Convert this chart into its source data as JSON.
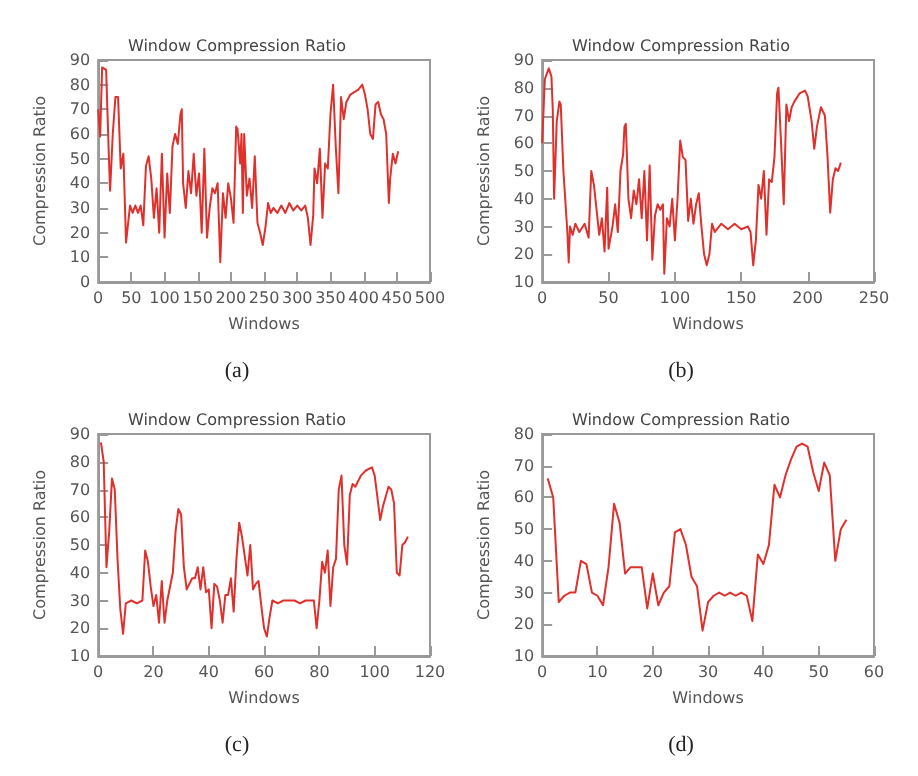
{
  "chart_data": [
    {
      "type": "line",
      "title": "Window Compression Ratio",
      "xlabel": "Windows",
      "ylabel": "Compression Ratio",
      "annotations": [
        "(a)"
      ],
      "marker": "none",
      "line_style": "solid",
      "grid": false,
      "color": "#e0302c",
      "xlim": [
        0,
        500
      ],
      "ylim": [
        0,
        90
      ],
      "xticks": [
        0,
        50,
        100,
        150,
        200,
        250,
        300,
        350,
        400,
        450,
        500
      ],
      "yticks": [
        0,
        10,
        20,
        30,
        40,
        50,
        60,
        70,
        80,
        90
      ],
      "x": [
        0,
        3,
        6,
        12,
        16,
        18,
        22,
        26,
        30,
        34,
        38,
        42,
        44,
        48,
        52,
        56,
        60,
        64,
        68,
        72,
        76,
        80,
        84,
        88,
        92,
        96,
        100,
        104,
        108,
        112,
        116,
        120,
        124,
        126,
        128,
        132,
        136,
        140,
        144,
        148,
        152,
        156,
        160,
        164,
        168,
        172,
        176,
        180,
        184,
        188,
        192,
        196,
        200,
        204,
        208,
        210,
        214,
        216,
        218,
        220,
        224,
        228,
        232,
        236,
        240,
        244,
        248,
        252,
        256,
        260,
        264,
        270,
        276,
        282,
        288,
        294,
        300,
        306,
        312,
        316,
        320,
        324,
        326,
        330,
        334,
        338,
        342,
        346,
        350,
        354,
        358,
        362,
        366,
        370,
        374,
        380,
        386,
        392,
        398,
        402,
        406,
        410,
        414,
        418,
        422,
        426,
        430,
        434,
        438,
        440,
        444,
        448,
        452
      ],
      "values": [
        70,
        59,
        87,
        86,
        52,
        37,
        60,
        75,
        75,
        46,
        52,
        16,
        16,
        31,
        28,
        31,
        28,
        31,
        23,
        47,
        51,
        42,
        26,
        38,
        20,
        52,
        18,
        44,
        28,
        55,
        60,
        56,
        68,
        70,
        40,
        30,
        45,
        36,
        52,
        35,
        44,
        20,
        54,
        18,
        30,
        38,
        36,
        40,
        8,
        36,
        26,
        40,
        34,
        24,
        63,
        62,
        48,
        60,
        28,
        60,
        35,
        42,
        30,
        51,
        24,
        20,
        15,
        22,
        32,
        28,
        30,
        28,
        31,
        28,
        32,
        29,
        31,
        29,
        31,
        26,
        15,
        27,
        46,
        40,
        54,
        26,
        48,
        46,
        68,
        80,
        55,
        36,
        75,
        66,
        73,
        76,
        77,
        78,
        80,
        76,
        70,
        60,
        58,
        72,
        73,
        68,
        66,
        60,
        32,
        42,
        52,
        48,
        53
      ]
    },
    {
      "type": "line",
      "title": "Window Compression Ratio",
      "xlabel": "Windows",
      "ylabel": "Compression Ratio",
      "annotations": [
        "(b)"
      ],
      "marker": "none",
      "line_style": "solid",
      "grid": false,
      "color": "#e0302c",
      "xlim": [
        0,
        250
      ],
      "ylim": [
        10,
        90
      ],
      "xticks": [
        0,
        50,
        100,
        150,
        200,
        250
      ],
      "yticks": [
        10,
        20,
        30,
        40,
        50,
        60,
        70,
        80,
        90
      ],
      "x": [
        0,
        2,
        5,
        7,
        8,
        9,
        11,
        13,
        14,
        16,
        19,
        20,
        21,
        23,
        25,
        28,
        32,
        35,
        37,
        39,
        41,
        43,
        45,
        47,
        49,
        50,
        53,
        55,
        57,
        59,
        61,
        62,
        63,
        65,
        67,
        69,
        71,
        73,
        75,
        77,
        79,
        81,
        83,
        85,
        87,
        89,
        91,
        92,
        94,
        96,
        98,
        100,
        102,
        104,
        106,
        108,
        110,
        112,
        114,
        116,
        118,
        120,
        122,
        124,
        126,
        128,
        130,
        135,
        140,
        145,
        150,
        155,
        157,
        159,
        161,
        163,
        165,
        167,
        169,
        171,
        173,
        175,
        177,
        178,
        180,
        182,
        184,
        186,
        188,
        190,
        194,
        198,
        200,
        203,
        205,
        207,
        210,
        213,
        215,
        217,
        219,
        221,
        223,
        225
      ],
      "values": [
        60,
        83,
        87,
        84,
        72,
        40,
        68,
        75,
        74,
        50,
        28,
        17,
        30,
        27,
        31,
        28,
        31,
        26,
        50,
        45,
        36,
        27,
        33,
        21,
        44,
        22,
        30,
        38,
        28,
        50,
        56,
        66,
        67,
        40,
        33,
        43,
        38,
        47,
        33,
        50,
        25,
        52,
        18,
        34,
        38,
        36,
        38,
        13,
        33,
        30,
        40,
        25,
        40,
        61,
        55,
        54,
        32,
        40,
        31,
        38,
        42,
        30,
        20,
        16,
        20,
        31,
        28,
        31,
        29,
        31,
        29,
        30,
        28,
        16,
        25,
        45,
        40,
        50,
        27,
        47,
        46,
        55,
        78,
        80,
        60,
        38,
        74,
        68,
        73,
        75,
        78,
        79,
        77,
        68,
        58,
        66,
        73,
        70,
        55,
        35,
        47,
        51,
        50,
        53
      ]
    },
    {
      "type": "line",
      "title": "Window Compression Ratio",
      "xlabel": "Windows",
      "ylabel": "Compression Ratio",
      "annotations": [
        "(c)"
      ],
      "marker": "none",
      "line_style": "solid",
      "grid": false,
      "color": "#e0302c",
      "xlim": [
        0,
        120
      ],
      "ylim": [
        10,
        90
      ],
      "xticks": [
        0,
        20,
        40,
        60,
        80,
        100,
        120
      ],
      "yticks": [
        10,
        20,
        30,
        40,
        50,
        60,
        70,
        80,
        90
      ],
      "x": [
        1,
        2,
        3,
        4,
        5,
        6,
        7,
        8,
        9,
        10,
        12,
        14,
        16,
        17,
        18,
        19,
        20,
        21,
        22,
        23,
        24,
        25,
        27,
        28,
        29,
        30,
        31,
        32,
        34,
        35,
        36,
        37,
        38,
        39,
        40,
        41,
        42,
        43,
        44,
        45,
        46,
        47,
        48,
        49,
        50,
        51,
        52,
        53,
        54,
        55,
        56,
        57,
        58,
        59,
        60,
        61,
        62,
        63,
        65,
        67,
        69,
        71,
        73,
        75,
        77,
        78,
        79,
        80,
        81,
        82,
        83,
        84,
        85,
        86,
        87,
        88,
        89,
        90,
        91,
        92,
        93,
        95,
        97,
        99,
        100,
        102,
        103,
        105,
        106,
        107,
        108,
        109,
        110,
        111,
        112
      ],
      "values": [
        87,
        80,
        42,
        55,
        74,
        70,
        45,
        27,
        18,
        29,
        30,
        29,
        30,
        48,
        44,
        35,
        28,
        32,
        22,
        37,
        22,
        30,
        40,
        55,
        63,
        61,
        42,
        34,
        38,
        38,
        42,
        34,
        42,
        33,
        34,
        20,
        36,
        35,
        30,
        22,
        32,
        32,
        38,
        26,
        45,
        58,
        53,
        46,
        39,
        50,
        34,
        36,
        37,
        28,
        20,
        17,
        24,
        30,
        29,
        30,
        30,
        30,
        29,
        30,
        30,
        30,
        20,
        30,
        44,
        40,
        48,
        28,
        42,
        45,
        70,
        75,
        50,
        43,
        68,
        72,
        71,
        75,
        77,
        78,
        75,
        59,
        64,
        71,
        70,
        65,
        40,
        39,
        50,
        51,
        53
      ]
    },
    {
      "type": "line",
      "title": "Window Compression Ratio",
      "xlabel": "Windows",
      "ylabel": "Compression Ratio",
      "annotations": [
        "(d)"
      ],
      "marker": "none",
      "line_style": "solid",
      "grid": false,
      "color": "#e0302c",
      "xlim": [
        0,
        60
      ],
      "ylim": [
        10,
        80
      ],
      "xticks": [
        0,
        10,
        20,
        30,
        40,
        50,
        60
      ],
      "yticks": [
        10,
        20,
        30,
        40,
        50,
        60,
        70,
        80
      ],
      "x": [
        1,
        2,
        3,
        4,
        5,
        6,
        7,
        8,
        9,
        10,
        11,
        12,
        13,
        14,
        15,
        16,
        17,
        18,
        19,
        20,
        21,
        22,
        23,
        24,
        25,
        26,
        27,
        28,
        29,
        30,
        31,
        32,
        33,
        34,
        35,
        36,
        37,
        38,
        39,
        40,
        41,
        42,
        43,
        44,
        45,
        46,
        47,
        48,
        49,
        50,
        51,
        52,
        53,
        54,
        55
      ],
      "values": [
        66,
        60,
        27,
        29,
        30,
        30,
        40,
        39,
        30,
        29,
        26,
        38,
        58,
        52,
        36,
        38,
        38,
        38,
        25,
        36,
        26,
        30,
        32,
        49,
        50,
        45,
        35,
        32,
        18,
        27,
        29,
        30,
        29,
        30,
        29,
        30,
        29,
        21,
        42,
        39,
        45,
        64,
        60,
        67,
        72,
        76,
        77,
        76,
        68,
        62,
        71,
        67,
        40,
        50,
        53
      ]
    }
  ]
}
